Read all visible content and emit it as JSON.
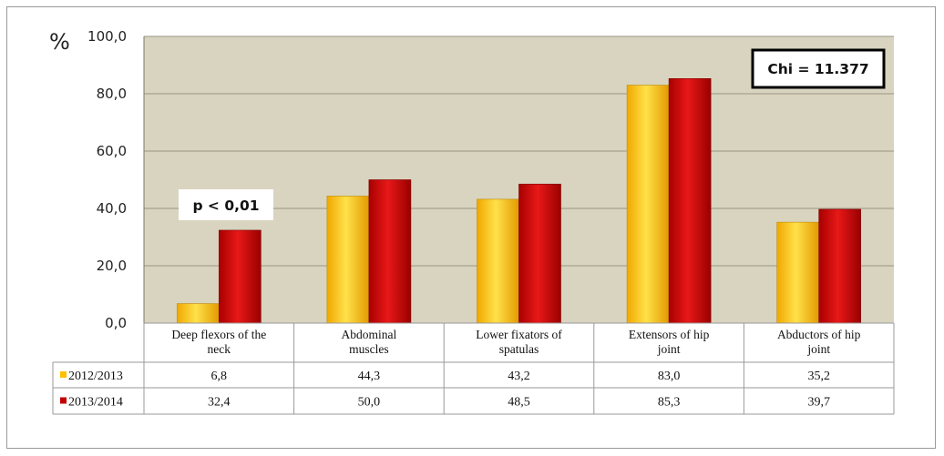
{
  "chart_data": {
    "type": "bar",
    "ylabel": "%",
    "ylim": [
      0,
      100
    ],
    "yticks": [
      "0,0",
      "20,0",
      "40,0",
      "60,0",
      "80,0",
      "100,0"
    ],
    "categories": [
      [
        "Deep flexors of the",
        "neck"
      ],
      [
        "Abdominal",
        "muscles"
      ],
      [
        "Lower fixators of",
        "spatulas"
      ],
      [
        "Extensors of hip",
        "joint"
      ],
      [
        "Abductors of hip",
        "joint"
      ]
    ],
    "series": [
      {
        "name": "2012/2013",
        "color": "#ffc000",
        "values": [
          6.8,
          44.3,
          43.2,
          83.0,
          35.2
        ],
        "labels": [
          "6,8",
          "44,3",
          "43,2",
          "83,0",
          "35,2"
        ]
      },
      {
        "name": "2013/2014",
        "color": "#c00000",
        "values": [
          32.4,
          50.0,
          48.5,
          85.3,
          39.7
        ],
        "labels": [
          "32,4",
          "50,0",
          "48,5",
          "85,3",
          "39,7"
        ]
      }
    ],
    "annotations": {
      "chi": "Chi = 11.377",
      "p": "p < 0,01"
    },
    "grid": true,
    "legend": "data-table"
  }
}
